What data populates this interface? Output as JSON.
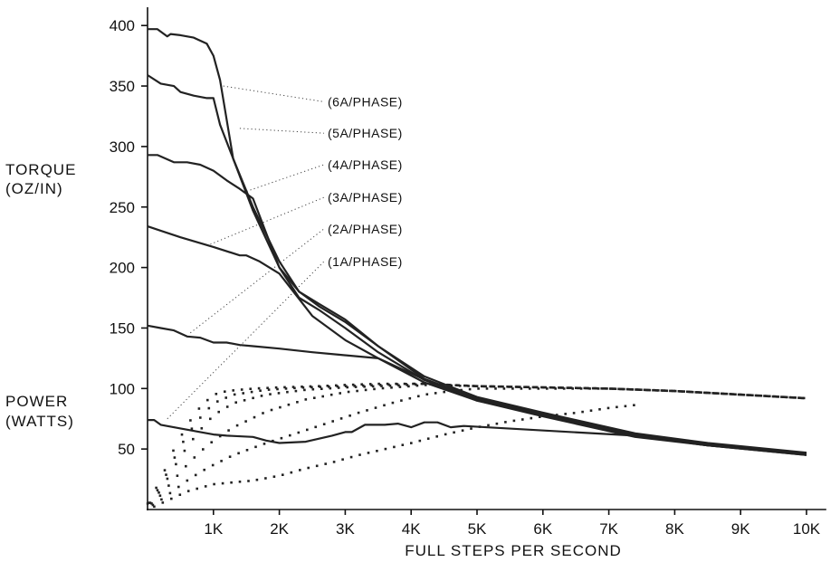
{
  "chart_data": {
    "type": "line",
    "xlabel": "FULL STEPS PER SECOND",
    "ylabel_torque": [
      "TORQUE",
      "(OZ/IN)"
    ],
    "ylabel_power": [
      "POWER",
      "(WATTS)"
    ],
    "x_ticks": [
      "1K",
      "2K",
      "3K",
      "4K",
      "5K",
      "6K",
      "7K",
      "8K",
      "9K",
      "10K"
    ],
    "x_tick_values": [
      1000,
      2000,
      3000,
      4000,
      5000,
      6000,
      7000,
      8000,
      9000,
      10000
    ],
    "y_ticks": [
      "50",
      "100",
      "150",
      "200",
      "250",
      "300",
      "350",
      "400"
    ],
    "y_tick_values": [
      50,
      100,
      150,
      200,
      250,
      300,
      350,
      400
    ],
    "xlim": [
      0,
      10300
    ],
    "ylim": [
      0,
      410
    ],
    "grid": false,
    "torque_series": [
      {
        "name": "(6A/PHASE)",
        "x": [
          0,
          150,
          300,
          350,
          500,
          700,
          900,
          1000,
          1100,
          1300,
          1600,
          2000,
          2300,
          2600,
          3000,
          3500,
          4200,
          5000,
          6000,
          7400,
          8500,
          10000
        ],
        "y": [
          397,
          397,
          391,
          393,
          392,
          390,
          385,
          375,
          355,
          290,
          250,
          205,
          180,
          170,
          157,
          135,
          110,
          93,
          80,
          63,
          55,
          47
        ]
      },
      {
        "name": "(5A/PHASE)",
        "x": [
          0,
          200,
          400,
          500,
          700,
          900,
          1000,
          1100,
          1300,
          1600,
          2000,
          2300,
          2600,
          3000,
          3500,
          4200,
          5000,
          6000,
          7400,
          8500,
          10000
        ],
        "y": [
          359,
          352,
          350,
          345,
          342,
          340,
          340,
          318,
          290,
          247,
          200,
          180,
          168,
          155,
          135,
          108,
          92,
          79,
          62,
          54,
          46
        ]
      },
      {
        "name": "(4A/PHASE)",
        "x": [
          0,
          150,
          400,
          600,
          800,
          1000,
          1200,
          1400,
          1600,
          2000,
          2300,
          2600,
          3000,
          3500,
          4200,
          5000,
          6000,
          7400,
          8500,
          10000
        ],
        "y": [
          293,
          293,
          287,
          287,
          285,
          280,
          272,
          265,
          257,
          200,
          175,
          165,
          150,
          130,
          107,
          91,
          78,
          62,
          54,
          46
        ]
      },
      {
        "name": "(3A/PHASE)",
        "x": [
          0,
          500,
          1000,
          1400,
          1500,
          1700,
          2000,
          2500,
          3000,
          3500,
          4200,
          5000,
          6000,
          7400,
          8500,
          10000
        ],
        "y": [
          234,
          225,
          217,
          210,
          210,
          205,
          195,
          160,
          140,
          125,
          105,
          90,
          78,
          61,
          53,
          46
        ]
      },
      {
        "name": "(2A/PHASE)",
        "x": [
          0,
          200,
          400,
          600,
          800,
          1000,
          1200,
          1400,
          1600,
          2000,
          2500,
          2900,
          3500,
          4300,
          5000,
          6000,
          7400,
          8500,
          10000
        ],
        "y": [
          152,
          150,
          148,
          143,
          142,
          138,
          138,
          136,
          135,
          133,
          130,
          128,
          125,
          105,
          90,
          77,
          60,
          53,
          45
        ]
      },
      {
        "name": "(1A/PHASE)",
        "x": [
          0,
          100,
          200,
          500,
          800,
          1000,
          1200,
          1600,
          1800,
          2000,
          2400,
          2800,
          3000,
          3100,
          3300,
          3600,
          3800,
          4000,
          4200,
          4400,
          4600,
          4800,
          7400,
          8500,
          10000
        ],
        "y": [
          74,
          74,
          70,
          67,
          64,
          62,
          61,
          60,
          57,
          55,
          56,
          61,
          64,
          64,
          70,
          70,
          71,
          68,
          72,
          72,
          68,
          69,
          61,
          53,
          45
        ]
      }
    ],
    "power_series": [
      {
        "name": "(6A/PHASE)",
        "x": [
          0,
          200,
          400,
          600,
          800,
          1000,
          1200,
          1600,
          2000,
          2600,
          3000,
          3500,
          4000,
          4200,
          5000,
          6000,
          7000,
          8000,
          9000,
          10000
        ],
        "y": [
          5,
          25,
          50,
          70,
          85,
          95,
          98,
          100,
          101,
          102,
          103,
          104,
          104,
          104,
          102,
          101,
          100,
          98,
          95,
          92
        ]
      },
      {
        "name": "(5A/PHASE)",
        "x": [
          0,
          200,
          400,
          600,
          800,
          1000,
          1300,
          1800,
          2400,
          3000,
          3500,
          4000,
          4200,
          5000,
          6000,
          7000,
          8000,
          9000,
          10000
        ],
        "y": [
          4,
          20,
          42,
          62,
          76,
          88,
          95,
          99,
          101,
          102,
          103,
          104,
          104,
          102,
          101,
          100,
          98,
          95,
          92
        ]
      },
      {
        "name": "(4A/PHASE)",
        "x": [
          0,
          200,
          400,
          600,
          800,
          1000,
          1300,
          1800,
          2400,
          3000,
          3500,
          4000,
          4200,
          5000,
          6000,
          7000,
          8000,
          9000,
          10000
        ],
        "y": [
          3,
          16,
          35,
          52,
          66,
          78,
          88,
          95,
          99,
          101,
          102,
          103,
          104,
          102,
          101,
          100,
          98,
          95,
          92
        ]
      },
      {
        "name": "(3A/PHASE)",
        "x": [
          0,
          200,
          400,
          600,
          800,
          1000,
          1300,
          1800,
          2400,
          3000,
          3500,
          4000,
          4200,
          5000,
          6000,
          7000,
          8000,
          9000,
          10000
        ],
        "y": [
          2,
          12,
          25,
          37,
          48,
          57,
          68,
          81,
          91,
          97,
          100,
          102,
          103,
          102,
          101,
          100,
          98,
          95,
          92
        ]
      },
      {
        "name": "(2A/PHASE)",
        "x": [
          0,
          200,
          400,
          600,
          800,
          1000,
          1300,
          1800,
          2200,
          2700,
          3200,
          3700,
          4200,
          4600,
          5000,
          6000,
          7000,
          8000,
          9000,
          10000
        ],
        "y": [
          1,
          8,
          16,
          24,
          31,
          37,
          45,
          55,
          62,
          71,
          80,
          88,
          95,
          98,
          100,
          100,
          100,
          98,
          95,
          92
        ]
      },
      {
        "name": "(1A/PHASE)",
        "x": [
          0,
          200,
          400,
          600,
          800,
          1000,
          1200,
          1600,
          2000,
          2400,
          2800,
          3200,
          3600,
          4000,
          4500,
          5000,
          5500,
          6000,
          6500,
          7000,
          7500
        ],
        "y": [
          0,
          5,
          10,
          15,
          18,
          21,
          22,
          24,
          28,
          34,
          39,
          45,
          50,
          55,
          62,
          68,
          73,
          77,
          80,
          84,
          87
        ]
      }
    ],
    "labels": [
      {
        "text": "(6A/PHASE)",
        "anchor_x": 1150,
        "anchor_y": 350,
        "label_y": 334
      },
      {
        "text": "(5A/PHASE)",
        "anchor_x": 1400,
        "anchor_y": 315,
        "label_y": 308
      },
      {
        "text": "(4A/PHASE)",
        "anchor_x": 1450,
        "anchor_y": 262,
        "label_y": 282
      },
      {
        "text": "(3A/PHASE)",
        "anchor_x": 900,
        "anchor_y": 218,
        "label_y": 255
      },
      {
        "text": "(2A/PHASE)",
        "anchor_x": 650,
        "anchor_y": 146,
        "label_y": 229
      },
      {
        "text": "(1A/PHASE)",
        "anchor_x": 300,
        "anchor_y": 75,
        "label_y": 202
      }
    ]
  }
}
